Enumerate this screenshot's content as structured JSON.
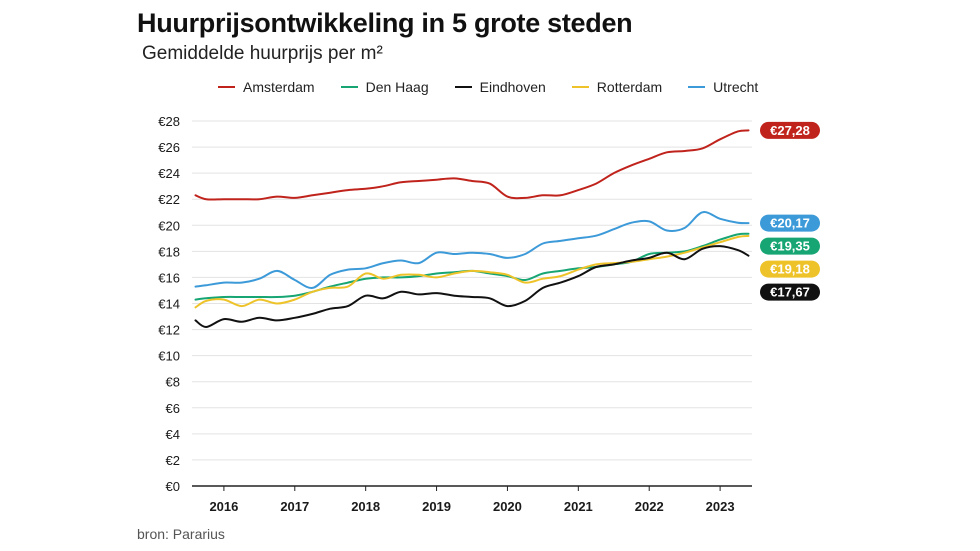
{
  "chart_data": {
    "type": "line",
    "title": "Huurprijsontwikkeling in 5 grote steden",
    "subtitle": "Gemiddelde huurprijs per m²",
    "xlabel": "",
    "ylabel": "",
    "source": "bron: Pararius",
    "ylim": [
      0,
      28
    ],
    "xlim": [
      2015.55,
      2023.45
    ],
    "y_ticks": [
      0,
      2,
      4,
      6,
      8,
      10,
      12,
      14,
      16,
      18,
      20,
      22,
      24,
      26,
      28
    ],
    "y_tick_labels": [
      "€0",
      "€2",
      "€4",
      "€6",
      "€8",
      "€10",
      "€12",
      "€14",
      "€16",
      "€18",
      "€20",
      "€22",
      "€24",
      "€26",
      "€28"
    ],
    "x_ticks": [
      2016,
      2017,
      2018,
      2019,
      2020,
      2021,
      2022,
      2023
    ],
    "x_tick_labels": [
      "2016",
      "2017",
      "2018",
      "2019",
      "2020",
      "2021",
      "2022",
      "2023"
    ],
    "x": [
      2015.6,
      2015.75,
      2016.0,
      2016.25,
      2016.5,
      2016.75,
      2017.0,
      2017.25,
      2017.5,
      2017.75,
      2018.0,
      2018.25,
      2018.5,
      2018.75,
      2019.0,
      2019.25,
      2019.5,
      2019.75,
      2020.0,
      2020.25,
      2020.5,
      2020.75,
      2021.0,
      2021.25,
      2021.5,
      2021.75,
      2022.0,
      2022.25,
      2022.5,
      2022.75,
      2023.0,
      2023.25,
      2023.4
    ],
    "series": [
      {
        "name": "Amsterdam",
        "color": "#c0231c",
        "end_label": "€27,28",
        "values": [
          22.3,
          22.0,
          22.0,
          22.0,
          22.0,
          22.2,
          22.1,
          22.3,
          22.5,
          22.7,
          22.8,
          23.0,
          23.3,
          23.4,
          23.5,
          23.6,
          23.4,
          23.2,
          22.2,
          22.1,
          22.3,
          22.3,
          22.7,
          23.2,
          24.0,
          24.6,
          25.1,
          25.6,
          25.7,
          25.9,
          26.6,
          27.2,
          27.28
        ]
      },
      {
        "name": "Den Haag",
        "color": "#17a673",
        "end_label": "€19,35",
        "values": [
          14.3,
          14.4,
          14.5,
          14.5,
          14.5,
          14.5,
          14.6,
          14.9,
          15.3,
          15.6,
          15.9,
          16.0,
          16.0,
          16.1,
          16.3,
          16.4,
          16.5,
          16.3,
          16.1,
          15.8,
          16.3,
          16.5,
          16.7,
          16.8,
          17.0,
          17.2,
          17.8,
          17.9,
          18.0,
          18.4,
          18.9,
          19.3,
          19.35
        ]
      },
      {
        "name": "Eindhoven",
        "color": "#111111",
        "end_label": "€17,67",
        "values": [
          12.7,
          12.2,
          12.8,
          12.6,
          12.9,
          12.7,
          12.9,
          13.2,
          13.6,
          13.8,
          14.6,
          14.4,
          14.9,
          14.7,
          14.8,
          14.6,
          14.5,
          14.4,
          13.8,
          14.2,
          15.2,
          15.6,
          16.1,
          16.8,
          17.0,
          17.3,
          17.5,
          17.9,
          17.4,
          18.2,
          18.4,
          18.1,
          17.67
        ]
      },
      {
        "name": "Rotterdam",
        "color": "#eec32a",
        "end_label": "€19,18",
        "values": [
          13.7,
          14.2,
          14.3,
          13.8,
          14.3,
          14.0,
          14.3,
          14.9,
          15.2,
          15.3,
          16.3,
          15.9,
          16.2,
          16.2,
          16.0,
          16.3,
          16.5,
          16.4,
          16.2,
          15.6,
          15.9,
          16.1,
          16.6,
          17.0,
          17.1,
          17.2,
          17.4,
          17.6,
          17.9,
          18.3,
          18.7,
          19.1,
          19.18
        ]
      },
      {
        "name": "Utrecht",
        "color": "#3d9ad9",
        "end_label": "€20,17",
        "values": [
          15.3,
          15.4,
          15.6,
          15.6,
          15.9,
          16.5,
          15.8,
          15.2,
          16.2,
          16.6,
          16.7,
          17.1,
          17.3,
          17.1,
          17.9,
          17.8,
          17.9,
          17.8,
          17.5,
          17.8,
          18.6,
          18.8,
          19.0,
          19.2,
          19.7,
          20.2,
          20.3,
          19.6,
          19.8,
          21.0,
          20.5,
          20.2,
          20.17
        ]
      }
    ]
  }
}
